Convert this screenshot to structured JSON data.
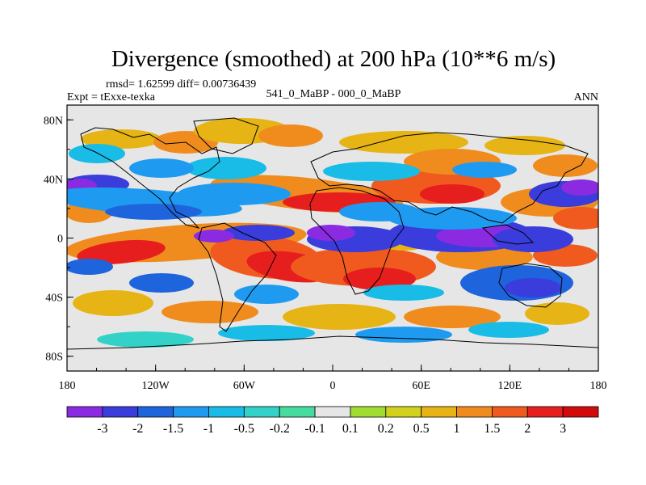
{
  "chart_data": {
    "type": "heatmap",
    "title": "Divergence (smoothed) at 200 hPa (10**6 m/s)",
    "stats": "rmsd= 1.62599 diff= 0.00736439",
    "left_label": "Expt = tExxe-texka",
    "center_label": "541_0_MaBP - 000_0_MaBP",
    "right_label": "ANN",
    "x_ticks": [
      "180",
      "120W",
      "60W",
      "0",
      "60E",
      "120E",
      "180"
    ],
    "y_ticks": [
      "80N",
      "40N",
      "0",
      "40S",
      "80S"
    ],
    "x_range": [
      -180,
      180
    ],
    "y_range": [
      -90,
      90
    ],
    "x_tick_values": [
      -180,
      -120,
      -60,
      0,
      60,
      120,
      180
    ],
    "y_tick_values": [
      80,
      40,
      0,
      -40,
      -80
    ],
    "levels": [
      "-3",
      "-2",
      "-1.5",
      "-1",
      "-0.5",
      "-0.2",
      "-0.1",
      "0.1",
      "0.2",
      "0.5",
      "1",
      "1.5",
      "2",
      "3"
    ],
    "colors": [
      "#8a2be2",
      "#3a3cdc",
      "#1e64dc",
      "#1e9bf0",
      "#18bce6",
      "#32d2c8",
      "#46dca0",
      "#e6e6e6",
      "#a0dc32",
      "#d2d21e",
      "#e6b414",
      "#f08c1e",
      "#f05a1e",
      "#e61e1e",
      "#d20a0a"
    ],
    "background_color": "#e6e6e6"
  }
}
